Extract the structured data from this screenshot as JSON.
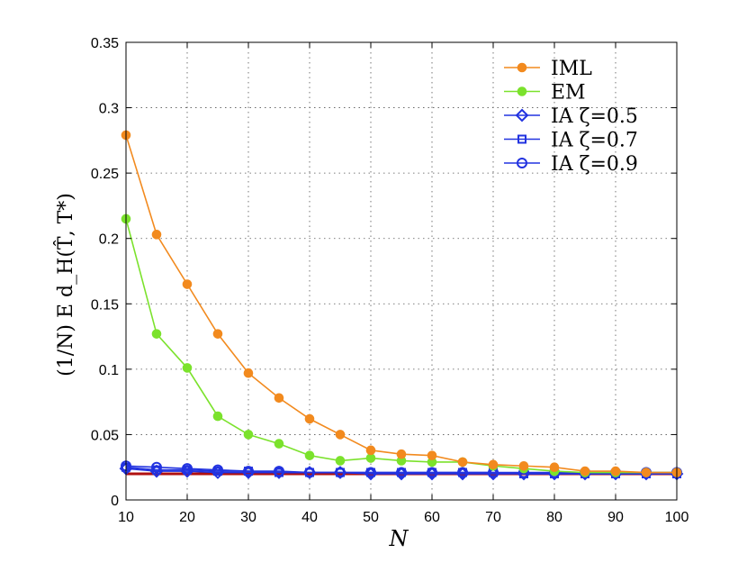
{
  "chart_data": {
    "type": "line",
    "title": "",
    "xlabel": "N",
    "ylabel": "(1/N) E d_H(T̂, T*)",
    "xlim": [
      10,
      100
    ],
    "ylim": [
      0,
      0.35
    ],
    "x_ticks": [
      10,
      20,
      30,
      40,
      50,
      60,
      70,
      80,
      90,
      100
    ],
    "y_ticks": [
      0,
      0.05,
      0.1,
      0.15,
      0.2,
      0.25,
      0.3,
      0.35
    ],
    "x_tick_labels": [
      "10",
      "20",
      "30",
      "40",
      "50",
      "60",
      "70",
      "80",
      "90",
      "100"
    ],
    "y_tick_labels": [
      "0",
      "0.05",
      "0.1",
      "0.15",
      "0.2",
      "0.25",
      "0.3",
      "0.35"
    ],
    "grid": true,
    "legend_position": "top-right",
    "x": [
      10,
      15,
      20,
      25,
      30,
      35,
      40,
      45,
      50,
      55,
      60,
      65,
      70,
      75,
      80,
      85,
      90,
      95,
      100
    ],
    "series": [
      {
        "name": "IML",
        "color": "#f28a1e",
        "marker": "filled-circle",
        "values": [
          0.279,
          0.203,
          0.165,
          0.127,
          0.097,
          0.078,
          0.062,
          0.05,
          0.038,
          0.035,
          0.034,
          0.029,
          0.027,
          0.026,
          0.025,
          0.022,
          0.022,
          0.021,
          0.021
        ]
      },
      {
        "name": "EM",
        "color": "#7be22c",
        "marker": "filled-circle",
        "values": [
          0.215,
          0.127,
          0.101,
          0.064,
          0.05,
          0.043,
          0.034,
          0.03,
          0.032,
          0.03,
          0.029,
          0.029,
          0.026,
          0.024,
          0.022,
          0.021,
          0.021,
          0.021,
          0.021
        ]
      },
      {
        "name": "IA ζ=0.5",
        "color": "#2233e0",
        "marker": "diamond",
        "values": [
          0.024,
          0.022,
          0.022,
          0.021,
          0.021,
          0.021,
          0.021,
          0.021,
          0.02,
          0.02,
          0.02,
          0.02,
          0.02,
          0.02,
          0.02,
          0.02,
          0.02,
          0.02,
          0.02
        ]
      },
      {
        "name": "IA ζ=0.7",
        "color": "#2233e0",
        "marker": "square",
        "values": [
          0.025,
          0.023,
          0.023,
          0.022,
          0.022,
          0.021,
          0.021,
          0.021,
          0.021,
          0.021,
          0.021,
          0.021,
          0.021,
          0.02,
          0.02,
          0.02,
          0.02,
          0.02,
          0.02
        ]
      },
      {
        "name": "IA ζ=0.9",
        "color": "#2233e0",
        "marker": "circle",
        "values": [
          0.026,
          0.025,
          0.024,
          0.023,
          0.022,
          0.022,
          0.021,
          0.021,
          0.021,
          0.021,
          0.021,
          0.021,
          0.021,
          0.021,
          0.021,
          0.021,
          0.021,
          0.021,
          0.021
        ]
      }
    ],
    "reference_line": {
      "color": "#b01010",
      "value": 0.02
    }
  }
}
